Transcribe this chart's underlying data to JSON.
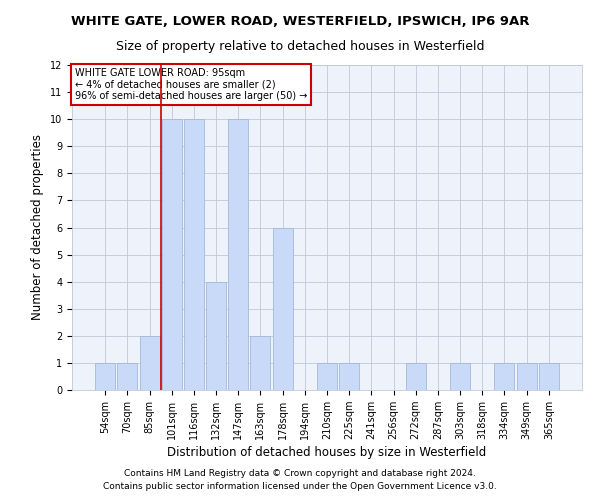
{
  "title": "WHITE GATE, LOWER ROAD, WESTERFIELD, IPSWICH, IP6 9AR",
  "subtitle": "Size of property relative to detached houses in Westerfield",
  "xlabel": "Distribution of detached houses by size in Westerfield",
  "ylabel": "Number of detached properties",
  "bar_labels": [
    "54sqm",
    "70sqm",
    "85sqm",
    "101sqm",
    "116sqm",
    "132sqm",
    "147sqm",
    "163sqm",
    "178sqm",
    "194sqm",
    "210sqm",
    "225sqm",
    "241sqm",
    "256sqm",
    "272sqm",
    "287sqm",
    "303sqm",
    "318sqm",
    "334sqm",
    "349sqm",
    "365sqm"
  ],
  "bar_values": [
    1,
    1,
    2,
    10,
    10,
    4,
    10,
    2,
    6,
    0,
    1,
    1,
    0,
    0,
    1,
    0,
    1,
    0,
    1,
    1,
    1
  ],
  "bar_color": "#c9daf8",
  "bar_edge_color": "#a4b8d8",
  "grid_color": "#c0c8d8",
  "background_color": "#eef2fa",
  "annotation_box_text": "WHITE GATE LOWER ROAD: 95sqm\n← 4% of detached houses are smaller (2)\n96% of semi-detached houses are larger (50) →",
  "annotation_box_color": "#cc0000",
  "vline_x_index": 2.5,
  "vline_color": "#cc0000",
  "ylim": [
    0,
    12
  ],
  "yticks": [
    0,
    1,
    2,
    3,
    4,
    5,
    6,
    7,
    8,
    9,
    10,
    11,
    12
  ],
  "footer1": "Contains HM Land Registry data © Crown copyright and database right 2024.",
  "footer2": "Contains public sector information licensed under the Open Government Licence v3.0.",
  "title_fontsize": 9.5,
  "subtitle_fontsize": 9,
  "xlabel_fontsize": 8.5,
  "ylabel_fontsize": 8.5,
  "tick_fontsize": 7,
  "footer_fontsize": 6.5,
  "annot_fontsize": 7
}
